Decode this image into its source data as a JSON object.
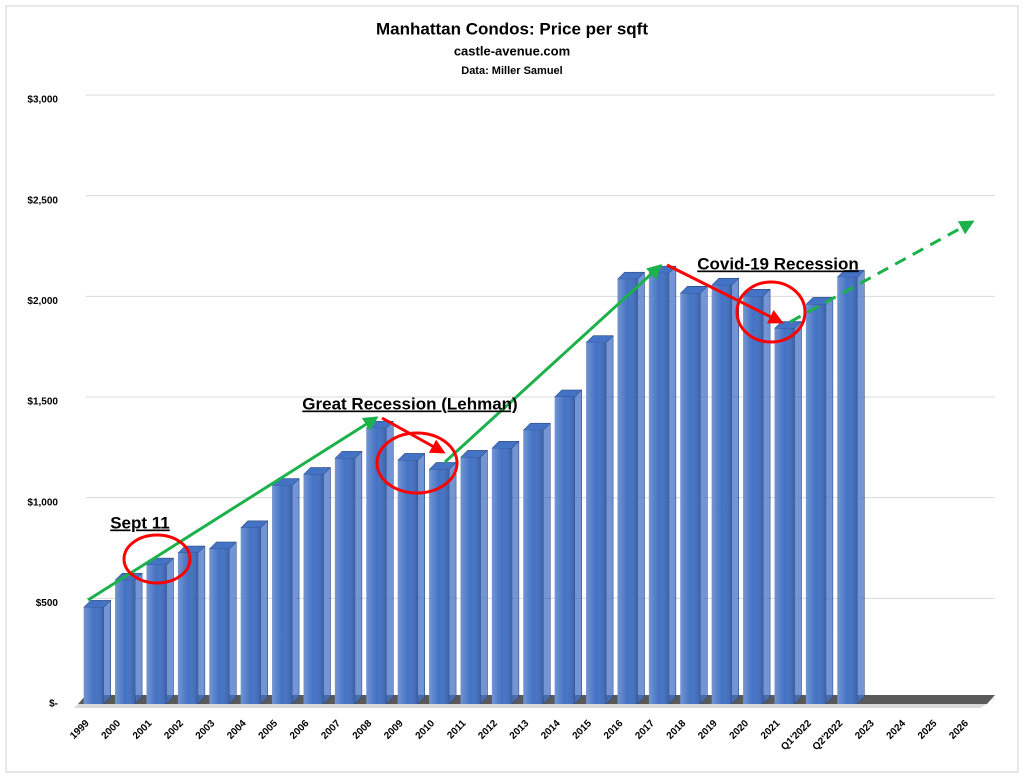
{
  "chart_data": {
    "type": "bar",
    "title": "Manhattan Condos: Price per sqft",
    "subtitle": "castle-avenue.com",
    "source": "Data: Miller Samuel",
    "categories": [
      "1999",
      "2000",
      "2001",
      "2002",
      "2003",
      "2004",
      "2005",
      "2006",
      "2007",
      "2008",
      "2009",
      "2010",
      "2011",
      "2012",
      "2013",
      "2014",
      "2015",
      "2016",
      "2017",
      "2018",
      "2019",
      "2020",
      "2021",
      "Q1'2022",
      "Q2'2022",
      "2023",
      "2024",
      "2025",
      "2026"
    ],
    "values": [
      480,
      615,
      690,
      750,
      770,
      875,
      1085,
      1140,
      1220,
      1370,
      1210,
      1165,
      1225,
      1270,
      1360,
      1525,
      1795,
      2110,
      2140,
      2040,
      2080,
      2025,
      1865,
      1985,
      2120,
      null,
      null,
      null,
      null
    ],
    "color": "#4472c4",
    "ylim": [
      0,
      3000
    ],
    "yticks": [
      {
        "value": 0,
        "label": "$-"
      },
      {
        "value": 500,
        "label": "$500"
      },
      {
        "value": 1000,
        "label": "$1,000"
      },
      {
        "value": 1500,
        "label": "$1,500"
      },
      {
        "value": 2000,
        "label": "$2,000"
      },
      {
        "value": 2500,
        "label": "$2,500"
      },
      {
        "value": 3000,
        "label": "$3,000"
      }
    ],
    "grid": true,
    "annotations": [
      "Sept 11",
      "Great Recession (Lehman)",
      "Covid-19 Recession"
    ]
  }
}
